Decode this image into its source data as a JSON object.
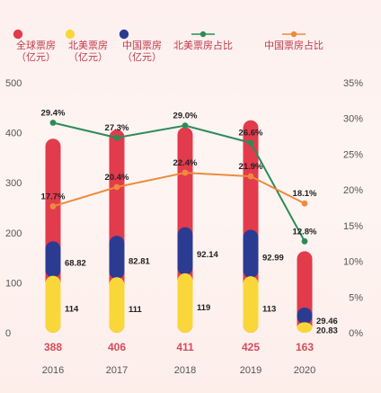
{
  "chart_data": {
    "type": "bar",
    "categories": [
      "2016",
      "2017",
      "2018",
      "2019",
      "2020"
    ],
    "series": [
      {
        "name": "全球票房\n（亿元）",
        "kind": "bar-total",
        "color": "#e23b4b",
        "values": [
          388,
          406,
          411,
          425,
          163
        ]
      },
      {
        "name": "北美票房\n（亿元）",
        "kind": "bar-stack",
        "color": "#f9d73a",
        "values": [
          114,
          111,
          119,
          113,
          20.83
        ]
      },
      {
        "name": "中国票房\n（亿元）",
        "kind": "bar-stack",
        "color": "#2c3b92",
        "values": [
          68.82,
          82.81,
          92.14,
          92.99,
          29.46
        ]
      },
      {
        "name": "北美票房占比",
        "kind": "line",
        "color": "#2e8b57",
        "values": [
          29.4,
          27.3,
          29.0,
          26.6,
          12.8
        ],
        "labels": [
          "29.4%",
          "27.3%",
          "29.0%",
          "26.6%",
          "12.8%"
        ]
      },
      {
        "name": "中国票房占比",
        "kind": "line",
        "color": "#ee8a3c",
        "values": [
          17.7,
          20.4,
          22.4,
          21.9,
          18.1
        ],
        "labels": [
          "17.7%",
          "20.4%",
          "22.4%",
          "21.9%",
          "18.1%"
        ]
      }
    ],
    "totals": [
      "388",
      "406",
      "411",
      "425",
      "163"
    ],
    "bar_labels": {
      "north_america": [
        "114",
        "111",
        "119",
        "113",
        "20.83"
      ],
      "china": [
        "68.82",
        "82.81",
        "92.14",
        "92.99",
        "29.46"
      ]
    },
    "y_left": {
      "ylim": [
        0,
        500
      ],
      "ticks": [
        "0",
        "100",
        "200",
        "300",
        "400",
        "500"
      ]
    },
    "y_right": {
      "ylim": [
        0,
        35
      ],
      "ticks": [
        "0%",
        "5%",
        "10%",
        "15%",
        "20%",
        "25%",
        "30%",
        "35%"
      ]
    },
    "legend": {
      "placement": "top"
    },
    "grid": false
  }
}
